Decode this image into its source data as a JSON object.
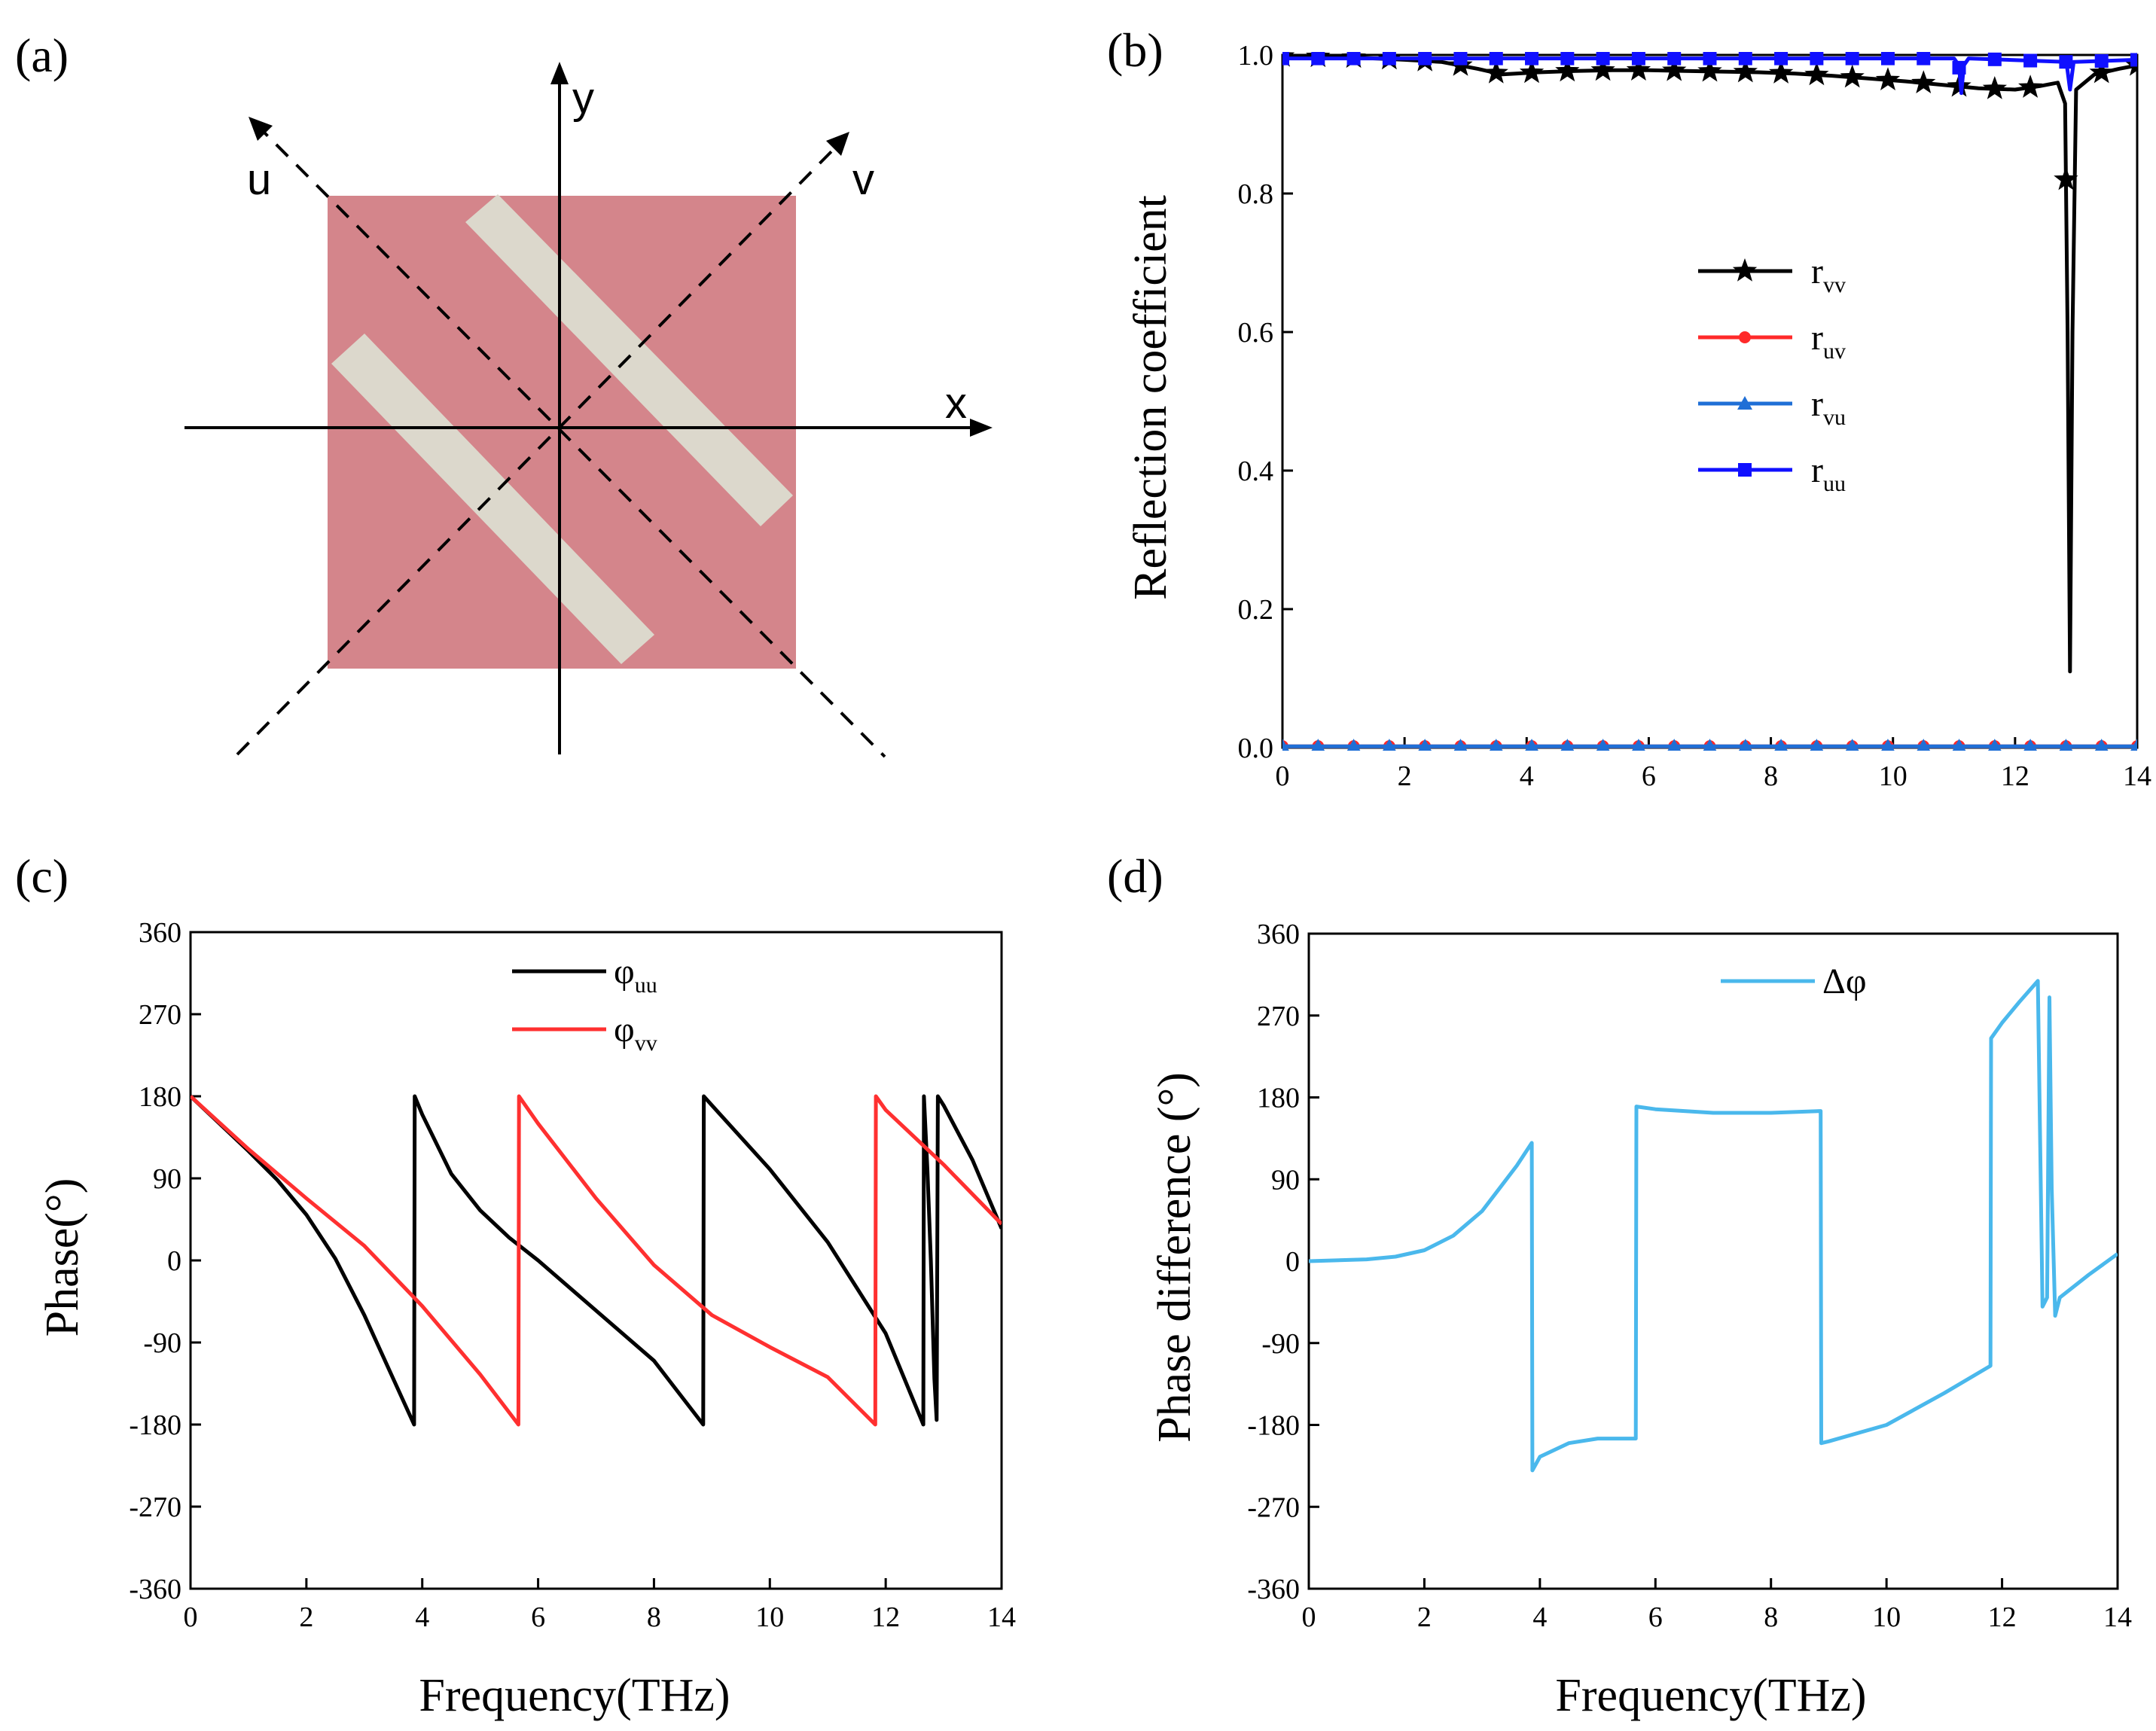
{
  "panels": {
    "a": {
      "label": "(a)",
      "axes_letters": {
        "x": "x",
        "y": "y",
        "u": "u",
        "v": "v"
      },
      "colors": {
        "substrate": "#d4858b",
        "strip": "#dcd8cc"
      }
    }
  },
  "chart_data": [
    {
      "id": "b",
      "panel_label": "(b)",
      "type": "line",
      "xlabel": "",
      "ylabel": "Reflection coefficient",
      "xlim": [
        0,
        14
      ],
      "ylim": [
        0,
        1
      ],
      "xticks": [
        "0",
        "2",
        "4",
        "6",
        "8",
        "10",
        "12",
        "14"
      ],
      "yticks": [
        "0.0",
        "0.2",
        "0.4",
        "0.6",
        "0.8",
        "1.0"
      ],
      "legend_position": "center-right",
      "series": [
        {
          "name": "r",
          "sub": "vv",
          "color": "#000000",
          "marker": "star",
          "x": [
            0,
            1,
            2,
            2.6,
            3.2,
            3.6,
            4.2,
            4.8,
            5.4,
            6,
            6.6,
            7.2,
            7.8,
            8.4,
            9,
            9.6,
            10.2,
            10.8,
            11.4,
            12,
            12.4,
            12.7,
            12.82,
            12.86,
            12.9,
            12.94,
            13.0,
            13.3,
            13.7,
            14
          ],
          "y": [
            0.998,
            0.997,
            0.993,
            0.99,
            0.98,
            0.972,
            0.975,
            0.977,
            0.978,
            0.978,
            0.977,
            0.976,
            0.975,
            0.973,
            0.97,
            0.966,
            0.962,
            0.957,
            0.952,
            0.95,
            0.955,
            0.96,
            0.93,
            0.6,
            0.11,
            0.6,
            0.95,
            0.972,
            0.98,
            0.985
          ]
        },
        {
          "name": "r",
          "sub": "uv",
          "color": "#ff2a2a",
          "marker": "circle",
          "x": [
            0,
            14
          ],
          "y": [
            0.002,
            0.002
          ]
        },
        {
          "name": "r",
          "sub": "vu",
          "color": "#1f6fd6",
          "marker": "triangle",
          "x": [
            0,
            14
          ],
          "y": [
            0.002,
            0.002
          ]
        },
        {
          "name": "r",
          "sub": "uu",
          "color": "#1010ff",
          "marker": "square",
          "x": [
            0,
            11.0,
            11.08,
            11.12,
            11.16,
            11.24,
            12.84,
            12.9,
            12.96,
            14
          ],
          "y": [
            0.995,
            0.995,
            0.985,
            0.945,
            0.985,
            0.995,
            0.99,
            0.95,
            0.99,
            0.993
          ]
        }
      ]
    },
    {
      "id": "c",
      "panel_label": "(c)",
      "type": "line",
      "xlabel": "Frequency(THz)",
      "ylabel": "Phase(°)",
      "xlim": [
        0,
        14
      ],
      "ylim": [
        -360,
        360
      ],
      "xticks": [
        "0",
        "2",
        "4",
        "6",
        "8",
        "10",
        "12",
        "14"
      ],
      "yticks": [
        "-360",
        "-270",
        "-180",
        "-90",
        "0",
        "90",
        "180",
        "270",
        "360"
      ],
      "legend_position": "top-center",
      "series": [
        {
          "name": "φ",
          "sub": "uu",
          "color": "#000000",
          "x": [
            0,
            0.5,
            1,
            1.5,
            2,
            2.5,
            3,
            3.5,
            3.86,
            3.87,
            4,
            4.5,
            5,
            5.5,
            6,
            7,
            8,
            8.85,
            8.86,
            9,
            10,
            11,
            12,
            12.65,
            12.66,
            12.72,
            12.78,
            12.84,
            12.88,
            12.9,
            13,
            13.5,
            14
          ],
          "y": [
            180,
            150,
            120,
            88,
            50,
            2,
            -60,
            -130,
            -180,
            180,
            160,
            95,
            55,
            25,
            0,
            -55,
            -110,
            -180,
            180,
            170,
            100,
            20,
            -80,
            -180,
            180,
            100,
            0,
            -130,
            -175,
            180,
            170,
            110,
            35
          ]
        },
        {
          "name": "φ",
          "sub": "vv",
          "color": "#ff3030",
          "x": [
            0,
            1,
            2,
            3,
            4,
            5,
            5.66,
            5.67,
            6,
            7,
            8,
            9,
            10,
            11,
            11.82,
            11.83,
            12,
            13,
            14
          ],
          "y": [
            180,
            122,
            68,
            16,
            -50,
            -125,
            -180,
            180,
            150,
            68,
            -5,
            -60,
            -95,
            -128,
            -180,
            180,
            165,
            105,
            40
          ]
        }
      ]
    },
    {
      "id": "d",
      "panel_label": "(d)",
      "type": "line",
      "xlabel": "Frequency(THz)",
      "ylabel": "Phase difference (°)",
      "xlim": [
        0,
        14
      ],
      "ylim": [
        -360,
        360
      ],
      "xticks": [
        "0",
        "2",
        "4",
        "6",
        "8",
        "10",
        "12",
        "14"
      ],
      "yticks": [
        "-360",
        "-270",
        "-180",
        "-90",
        "0",
        "90",
        "180",
        "270",
        "360"
      ],
      "legend_position": "top-center",
      "series": [
        {
          "name": "Δφ",
          "sub": "",
          "color": "#4ab8ec",
          "x": [
            0,
            1,
            1.5,
            2,
            2.5,
            3,
            3.3,
            3.6,
            3.86,
            3.87,
            4,
            4.5,
            5,
            5.66,
            5.67,
            6,
            7,
            8,
            8.86,
            8.87,
            9,
            10,
            11,
            11.8,
            11.81,
            12,
            12.3,
            12.62,
            12.7,
            12.78,
            12.82,
            12.86,
            12.92,
            13.0,
            13.5,
            14
          ],
          "y": [
            0,
            2,
            5,
            12,
            28,
            55,
            80,
            105,
            130,
            -230,
            -215,
            -200,
            -195,
            -195,
            170,
            167,
            163,
            163,
            165,
            -200,
            -198,
            -180,
            -145,
            -115,
            245,
            262,
            285,
            308,
            -50,
            -40,
            290,
            80,
            -60,
            -40,
            -15,
            8
          ]
        }
      ]
    }
  ]
}
